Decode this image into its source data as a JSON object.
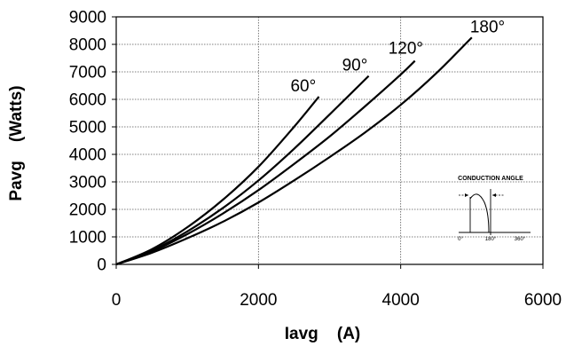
{
  "chart_data": {
    "type": "line",
    "title": "",
    "xlabel": "Iavg    (A)",
    "ylabel": "Pavg    (Watts)",
    "xlim": [
      0,
      6000
    ],
    "ylim": [
      0,
      9000
    ],
    "x_ticks": [
      "0",
      "2000",
      "4000",
      "6000"
    ],
    "y_ticks": [
      "0",
      "1000",
      "2000",
      "3000",
      "4000",
      "5000",
      "6000",
      "7000",
      "8000",
      "9000"
    ],
    "grid": true,
    "series": [
      {
        "name": "60°",
        "points": [
          [
            0,
            0
          ],
          [
            500,
            550
          ],
          [
            1000,
            1350
          ],
          [
            1500,
            2350
          ],
          [
            2000,
            3550
          ],
          [
            2500,
            5000
          ],
          [
            2850,
            6100
          ]
        ]
      },
      {
        "name": "90°",
        "points": [
          [
            0,
            0
          ],
          [
            500,
            500
          ],
          [
            1000,
            1200
          ],
          [
            1500,
            2050
          ],
          [
            2000,
            3050
          ],
          [
            2500,
            4200
          ],
          [
            3000,
            5450
          ],
          [
            3550,
            6850
          ]
        ]
      },
      {
        "name": "120°",
        "points": [
          [
            0,
            0
          ],
          [
            500,
            470
          ],
          [
            1000,
            1100
          ],
          [
            1500,
            1850
          ],
          [
            2000,
            2700
          ],
          [
            2500,
            3650
          ],
          [
            3000,
            4650
          ],
          [
            3500,
            5750
          ],
          [
            4000,
            6900
          ],
          [
            4200,
            7400
          ]
        ]
      },
      {
        "name": "180°",
        "points": [
          [
            0,
            0
          ],
          [
            500,
            420
          ],
          [
            1000,
            950
          ],
          [
            1500,
            1550
          ],
          [
            2000,
            2250
          ],
          [
            2500,
            3050
          ],
          [
            3000,
            3900
          ],
          [
            3500,
            4800
          ],
          [
            4000,
            5800
          ],
          [
            4500,
            6950
          ],
          [
            5000,
            8250
          ]
        ]
      }
    ],
    "inset": {
      "title": "CONDUCTION ANGLE",
      "labels": [
        "0°",
        "180°",
        "360°"
      ]
    }
  }
}
